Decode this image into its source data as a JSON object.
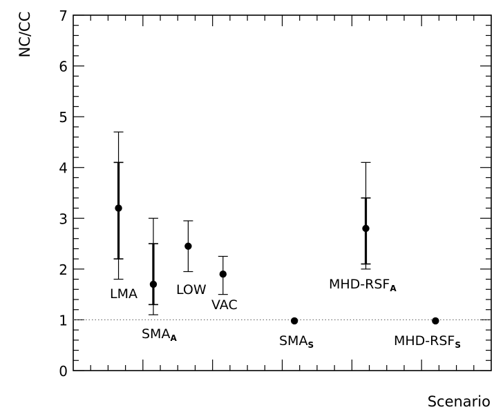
{
  "chart_data": {
    "type": "scatter",
    "title": "",
    "xlabel": "Scenario",
    "ylabel": "NC/CC",
    "ylim": [
      0,
      7
    ],
    "yticks": [
      "0",
      "1",
      "2",
      "3",
      "4",
      "5",
      "6",
      "7"
    ],
    "reference_line": 1,
    "points": [
      {
        "label": "LMA",
        "sub": "",
        "x": 1.3,
        "y": 3.2,
        "inner": [
          2.2,
          4.1
        ],
        "outer": [
          1.8,
          4.7
        ]
      },
      {
        "label": "SMA",
        "sub": "A",
        "x": 2.3,
        "y": 1.7,
        "inner": [
          1.3,
          2.5
        ],
        "outer": [
          1.1,
          3.0
        ]
      },
      {
        "label": "LOW",
        "sub": "",
        "x": 3.3,
        "y": 2.45,
        "inner": null,
        "outer": [
          1.95,
          2.95
        ]
      },
      {
        "label": "VAC",
        "sub": "",
        "x": 4.3,
        "y": 1.9,
        "inner": null,
        "outer": [
          1.5,
          2.25
        ]
      },
      {
        "label": "SMA",
        "sub": "S",
        "x": 6.35,
        "y": 0.98,
        "inner": null,
        "outer": null
      },
      {
        "label": "MHD-RSF",
        "sub": "A",
        "x": 8.4,
        "y": 2.8,
        "inner": [
          2.1,
          3.4
        ],
        "outer": [
          2.0,
          4.1
        ]
      },
      {
        "label": "MHD-RSF",
        "sub": "S",
        "x": 10.4,
        "y": 0.98,
        "inner": null,
        "outer": null
      }
    ],
    "xlim": [
      0,
      12
    ],
    "grid": false,
    "legend": "none"
  }
}
